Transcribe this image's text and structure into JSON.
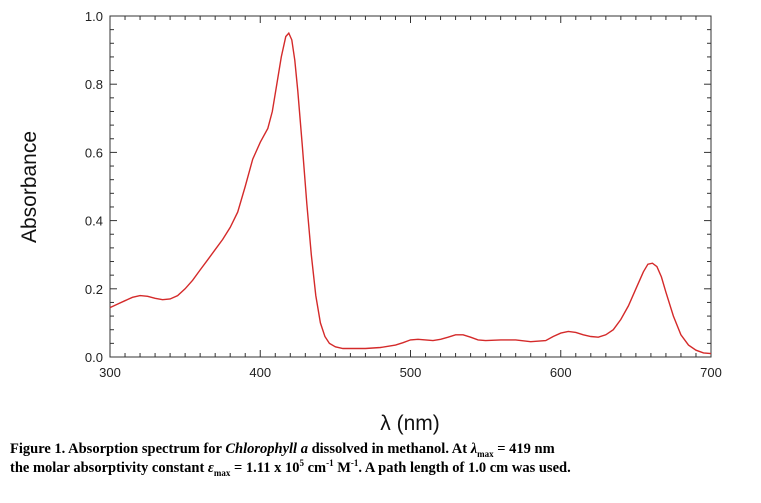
{
  "chart_data": {
    "type": "line",
    "xlabel": "λ (nm)",
    "ylabel": "Absorbance",
    "xlim": [
      300,
      700
    ],
    "ylim": [
      0.0,
      1.0
    ],
    "x_ticks": [
      300,
      400,
      500,
      600,
      700
    ],
    "y_ticks": [
      0.0,
      0.2,
      0.4,
      0.6,
      0.8,
      1.0
    ],
    "x_tick_labels": [
      "300",
      "400",
      "500",
      "600",
      "700"
    ],
    "y_tick_labels": [
      "0.0",
      "0.2",
      "0.4",
      "0.6",
      "0.8",
      "1.0"
    ],
    "grid": false,
    "line_color": "#d42a2a",
    "series": [
      {
        "x": [
          300,
          305,
          310,
          315,
          320,
          325,
          330,
          335,
          340,
          345,
          350,
          355,
          360,
          365,
          370,
          375,
          380,
          385,
          390,
          395,
          400,
          405,
          408,
          411,
          414,
          417,
          419,
          421,
          423,
          425,
          428,
          431,
          434,
          437,
          440,
          443,
          446,
          450,
          455,
          460,
          470,
          480,
          490,
          495,
          500,
          505,
          510,
          515,
          520,
          525,
          530,
          535,
          540,
          545,
          550,
          560,
          570,
          580,
          590,
          595,
          600,
          605,
          610,
          615,
          620,
          625,
          630,
          635,
          640,
          645,
          650,
          655,
          658,
          661,
          664,
          667,
          670,
          675,
          680,
          685,
          690,
          695,
          700
        ],
        "values": [
          0.145,
          0.155,
          0.165,
          0.175,
          0.18,
          0.178,
          0.172,
          0.168,
          0.17,
          0.18,
          0.2,
          0.225,
          0.255,
          0.285,
          0.315,
          0.345,
          0.38,
          0.425,
          0.5,
          0.58,
          0.63,
          0.67,
          0.72,
          0.8,
          0.88,
          0.94,
          0.95,
          0.93,
          0.87,
          0.78,
          0.62,
          0.45,
          0.3,
          0.18,
          0.1,
          0.06,
          0.04,
          0.03,
          0.025,
          0.025,
          0.025,
          0.028,
          0.035,
          0.042,
          0.05,
          0.052,
          0.05,
          0.048,
          0.052,
          0.058,
          0.065,
          0.065,
          0.058,
          0.05,
          0.048,
          0.05,
          0.05,
          0.045,
          0.048,
          0.06,
          0.07,
          0.075,
          0.072,
          0.065,
          0.06,
          0.058,
          0.065,
          0.08,
          0.11,
          0.15,
          0.2,
          0.25,
          0.272,
          0.275,
          0.265,
          0.235,
          0.19,
          0.12,
          0.065,
          0.035,
          0.02,
          0.012,
          0.01
        ]
      }
    ]
  },
  "caption": {
    "line1_a": "Figure 1. Absorption spectrum for ",
    "line1_italic": "Chlorophyll a",
    "line1_b": " dissolved in methanol. At ",
    "lambda_symbol": "λ",
    "max_sub_1": "max",
    "line1_c": " = 419 nm",
    "line2_a": "the molar absorptivity constant ",
    "epsilon_symbol": "ε",
    "max_sub_2": "max",
    "line2_b": " = 1.11 x 10",
    "exp_5": "5",
    "line2_c": " cm",
    "exp_m1_a": "-1",
    "line2_d": " M",
    "exp_m1_b": "-1",
    "line2_e": ".  A path length of 1.0 cm was used."
  }
}
